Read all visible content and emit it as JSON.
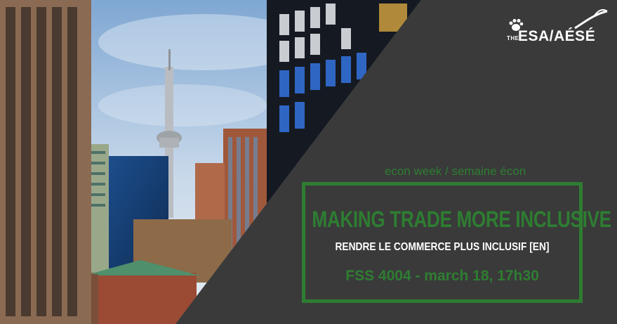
{
  "logo": {
    "the": "THE",
    "main": "ESA/AÉSÉ"
  },
  "banner": {
    "tagline": "econ week / semaine écon",
    "headline": "MAKING TRADE MORE INCLUSIVE",
    "subheadline": "RENDRE LE COMMERCE PLUS INCLUSIF [EN]",
    "event": "FSS 4004 - march 18, 17h30"
  },
  "colors": {
    "accent": "#2e7d32",
    "panel": "#3a3a3a",
    "text": "#ffffff"
  }
}
